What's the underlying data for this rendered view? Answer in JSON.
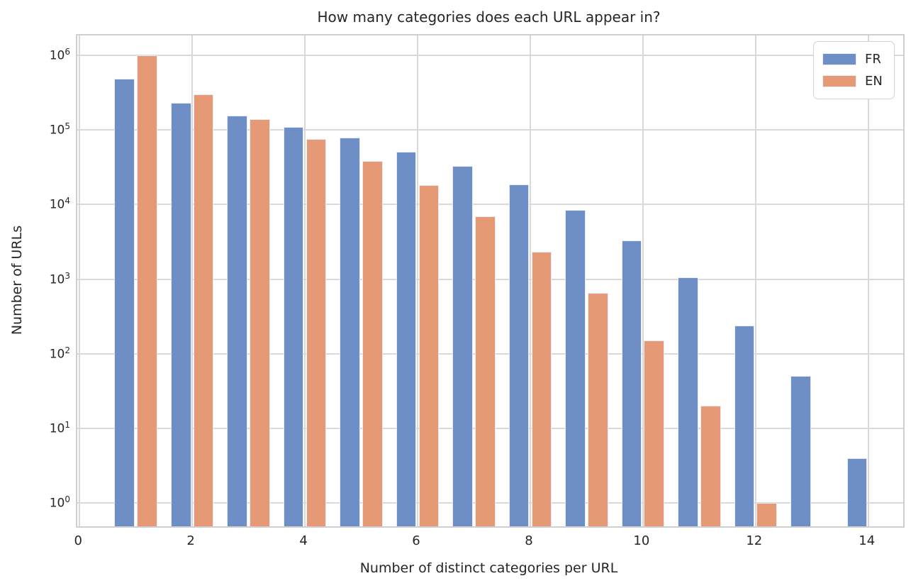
{
  "chart_data": {
    "type": "bar",
    "title": "How many categories does each URL appear in?",
    "xlabel": "Number of distinct categories per URL",
    "ylabel": "Number of URLs",
    "yscale": "log",
    "grid": true,
    "legend_position": "upper right",
    "categories": [
      1,
      2,
      3,
      4,
      5,
      6,
      7,
      8,
      9,
      10,
      11,
      12,
      13,
      14
    ],
    "series": [
      {
        "name": "FR",
        "color": "#6e8ec6",
        "values": [
          480000,
          230000,
          155000,
          110000,
          78000,
          51000,
          33000,
          18500,
          8500,
          3300,
          1050,
          240,
          50,
          4
        ]
      },
      {
        "name": "EN",
        "color": "#e59a75",
        "values": [
          1000000,
          300000,
          140000,
          75000,
          38000,
          18000,
          7000,
          2300,
          650,
          150,
          20,
          1,
          null,
          null
        ]
      }
    ],
    "x_ticks": [
      0,
      2,
      4,
      6,
      8,
      10,
      12,
      14
    ],
    "y_tick_exponents": [
      0,
      1,
      2,
      3,
      4,
      5,
      6
    ],
    "xlim": [
      -0.04,
      14.62
    ],
    "ylim": [
      0.49,
      1830000
    ],
    "bar_width_units": 0.36,
    "group_offset_units": 0.2
  }
}
